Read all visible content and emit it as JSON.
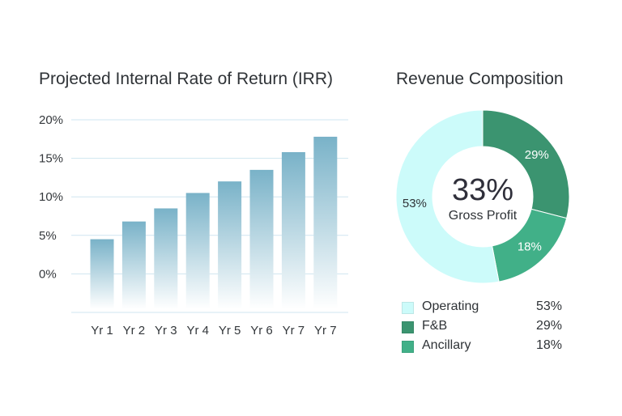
{
  "chart_data": [
    {
      "type": "bar",
      "title": "Projected Internal Rate of Return (IRR)",
      "categories": [
        "Yr 1",
        "Yr 2",
        "Yr 3",
        "Yr 4",
        "Yr 5",
        "Yr 6",
        "Yr 7",
        "Yr 7"
      ],
      "values": [
        4.5,
        6.8,
        8.5,
        10.5,
        12.0,
        13.5,
        15.8,
        17.8
      ],
      "y_ticks": [
        "20%",
        "15%",
        "10%",
        "5%",
        "0%"
      ],
      "y_tick_values": [
        20,
        15,
        10,
        5,
        0
      ],
      "ylim": [
        -5,
        20
      ],
      "grid": true,
      "colors": {
        "bar_top": "#79b2c8",
        "bar_bottom": "#ffffff",
        "grid": "#cfe6f0"
      }
    },
    {
      "type": "pie",
      "title": "Revenue Composition",
      "center_value": "33%",
      "center_label": "Gross Profit",
      "slices": [
        {
          "label": "Operating",
          "value": 53,
          "label_text": "53%",
          "color": "#ccfbfa"
        },
        {
          "label": "F&B",
          "value": 29,
          "label_text": "29%",
          "color": "#3b9470"
        },
        {
          "label": "Ancillary",
          "value": 18,
          "label_text": "18%",
          "color": "#41b088"
        }
      ],
      "legend_placement": "bottom"
    }
  ]
}
